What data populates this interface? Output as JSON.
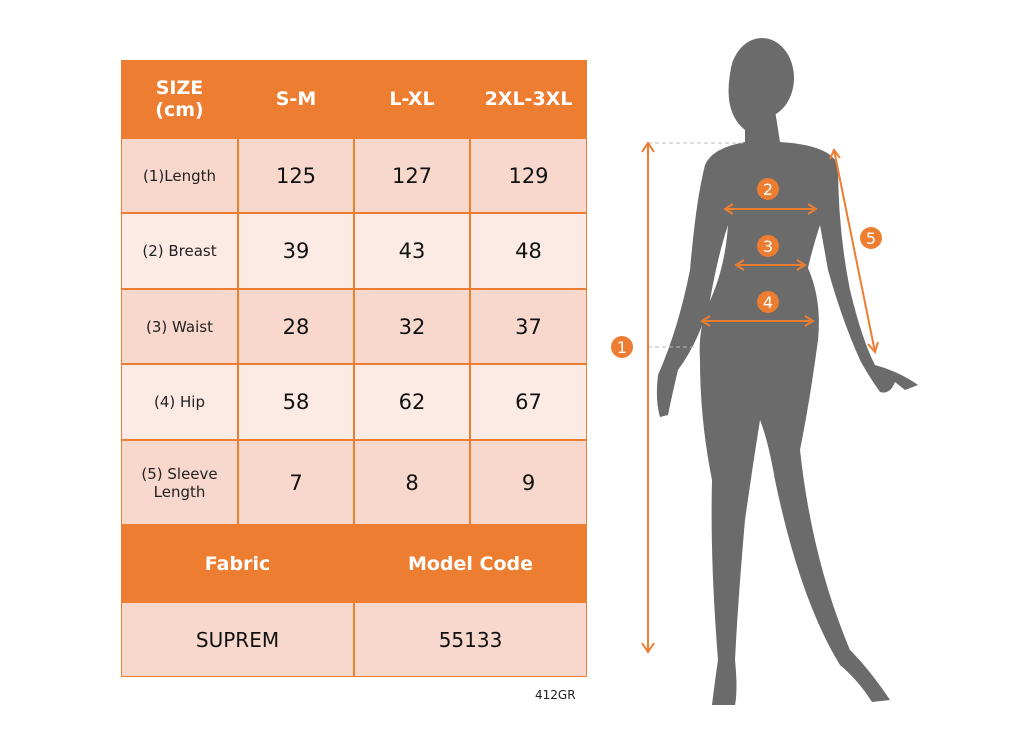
{
  "table": {
    "header": [
      "SIZE\n(cm)",
      "S-M",
      "L-XL",
      "2XL-3XL"
    ],
    "header_line1": "SIZE",
    "header_line2": "(cm)",
    "rows": [
      {
        "label": "(1)Length",
        "values": [
          "125",
          "127",
          "129"
        ]
      },
      {
        "label": "(2) Breast",
        "values": [
          "39",
          "43",
          "48"
        ]
      },
      {
        "label": "(3) Waist",
        "values": [
          "28",
          "32",
          "37"
        ]
      },
      {
        "label": "(4) Hip",
        "values": [
          "58",
          "62",
          "67"
        ]
      },
      {
        "label_line1": "(5) Sleeve",
        "label_line2": "Length",
        "values": [
          "7",
          "8",
          "9"
        ]
      }
    ],
    "footer_headers": [
      "Fabric",
      "Model Code"
    ],
    "footer_values": [
      "SUPREM",
      "55133"
    ]
  },
  "product_code": "412GR",
  "figure": {
    "markers": [
      "1",
      "2",
      "3",
      "4",
      "5"
    ]
  },
  "colors": {
    "accent": "#ed7d31",
    "row_dark": "#f8d8cd",
    "row_light": "#fcebe5",
    "silhouette": "#6b6b6b"
  }
}
